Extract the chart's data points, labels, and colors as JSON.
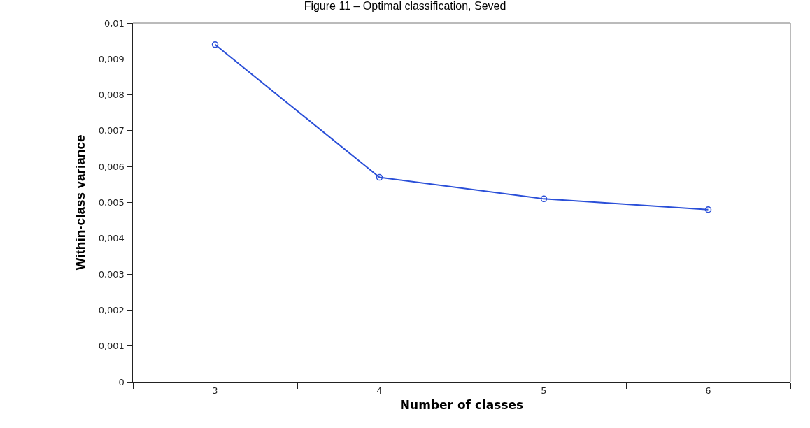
{
  "chart_data": {
    "type": "line",
    "title": "Figure 11 – Optimal classification, Seved",
    "xlabel": "Number of classes",
    "ylabel": "Within-class variance",
    "categories": [
      "3",
      "4",
      "5",
      "6"
    ],
    "series": [
      {
        "color": "#2a4fd8",
        "values": [
          0.0094,
          0.0057,
          0.0051,
          0.0048
        ]
      }
    ],
    "ylim": [
      0,
      0.01
    ],
    "yticks": [
      0,
      {
        "value": 0.001,
        "label": "0,001"
      },
      {
        "value": 0.002,
        "label": "0,002"
      },
      {
        "value": 0.003,
        "label": "0,003"
      },
      {
        "value": 0.004,
        "label": "0,004"
      },
      {
        "value": 0.005,
        "label": "0,005"
      },
      {
        "value": 0.006,
        "label": "0,006"
      },
      {
        "value": 0.007,
        "label": "0,007"
      },
      {
        "value": 0.008,
        "label": "0,008"
      },
      {
        "value": 0.009,
        "label": "0,009"
      },
      {
        "value": 0.01,
        "label": "0,01"
      }
    ],
    "grid": false,
    "marker": "circle",
    "line_style": "solid"
  }
}
